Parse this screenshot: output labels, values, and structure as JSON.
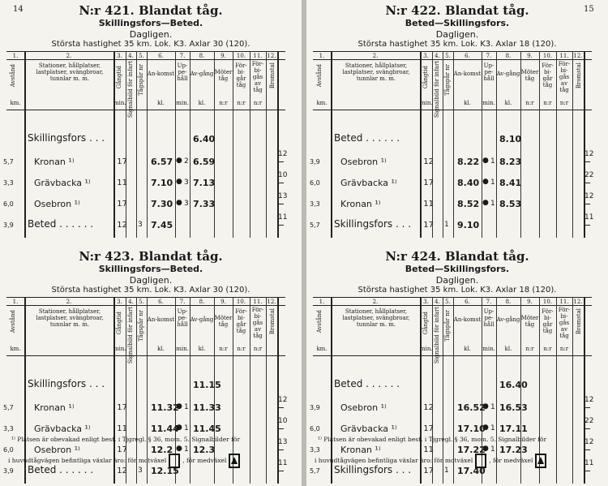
{
  "left": {
    "page_number": "14",
    "tables": [
      {
        "nr": "N:r 421.",
        "title": "Blandat tåg.",
        "route": "Skillingsfors—Beted.",
        "daily": "Dagligen.",
        "speed": "Största hastighet 35 km.  Lok. K3.  Axlar 30 (120).",
        "rows": [
          {
            "km": "",
            "station": "Skillingsfors . . .",
            "grade": "",
            "sig": "",
            "arr": "",
            "hold": "",
            "dep": "6.40",
            "brake": ""
          },
          {
            "km": "5,7",
            "station": "Kronan ¹⁾",
            "grade": "17",
            "sig": "",
            "arr": "6.57",
            "hold": "2",
            "dep": "6.59",
            "brake": "12"
          },
          {
            "km": "3,3",
            "station": "Grävbacka ¹⁾",
            "grade": "11",
            "sig": "",
            "arr": "7.10",
            "hold": "3",
            "dep": "7.13",
            "brake": "10"
          },
          {
            "km": "6,0",
            "station": "Osebron ¹⁾",
            "grade": "17",
            "sig": "",
            "arr": "7.30",
            "hold": "3",
            "dep": "7.33",
            "brake": "13"
          },
          {
            "km": "3,9",
            "station": "Beted . . . . . .",
            "grade": "12",
            "sig": "3",
            "arr": "7.45",
            "hold": "",
            "dep": "",
            "brake": "11"
          }
        ]
      },
      {
        "nr": "N:r 423.",
        "title": "Blandat tåg.",
        "route": "Skillingsfors—Beted.",
        "daily": "Dagligen.",
        "speed": "Största hastighet 35 km.  Lok. K3.  Axlar 30 (120).",
        "rows": [
          {
            "km": "",
            "station": "Skillingsfors . . .",
            "grade": "",
            "sig": "",
            "arr": "",
            "hold": "",
            "dep": "11.15",
            "brake": ""
          },
          {
            "km": "5,7",
            "station": "Kronan ¹⁾",
            "grade": "17",
            "sig": "",
            "arr": "11.32",
            "hold": "1",
            "dep": "11.33",
            "brake": "12"
          },
          {
            "km": "3,3",
            "station": "Grävbacka ¹⁾",
            "grade": "11",
            "sig": "",
            "arr": "11.44",
            "hold": "1",
            "dep": "11.45",
            "brake": "10"
          },
          {
            "km": "6,0",
            "station": "Osebron ¹⁾",
            "grade": "17",
            "sig": "",
            "arr": "12.2",
            "hold": "1",
            "dep": "12.3",
            "brake": "13"
          },
          {
            "km": "3,9",
            "station": "Beted . . . . . .",
            "grade": "12",
            "sig": "3",
            "arr": "12.15",
            "hold": "",
            "dep": "",
            "brake": "11"
          }
        ]
      }
    ],
    "footnote_line1": "¹⁾ Platsen är obevakad enligt best. i Tjgregl. § 36, mom. 5.  Signalbilder för",
    "footnote_line2a": "i huvudtågvägen befintliga växlar äro: för motväxel",
    "footnote_line2b": ", för medväxel"
  },
  "right": {
    "page_number": "15",
    "tables": [
      {
        "nr": "N:r 422.",
        "title": "Blandat tåg.",
        "route": "Beted—Skillingsfors.",
        "daily": "Dagligen.",
        "speed": "Största hastighet 35 km.  Lok. K3.  Axlar 18 (120).",
        "rows": [
          {
            "km": "",
            "station": "Beted . . . . . .",
            "grade": "",
            "sig": "",
            "arr": "",
            "hold": "",
            "dep": "8.10",
            "brake": ""
          },
          {
            "km": "3,9",
            "station": "Osebron ¹⁾",
            "grade": "12",
            "sig": "",
            "arr": "8.22",
            "hold": "1",
            "dep": "8.23",
            "brake": "12"
          },
          {
            "km": "6,0",
            "station": "Grävbacka ¹⁾",
            "grade": "17",
            "sig": "",
            "arr": "8.40",
            "hold": "1",
            "dep": "8.41",
            "brake": "22"
          },
          {
            "km": "3,3",
            "station": "Kronan ¹⁾",
            "grade": "11",
            "sig": "",
            "arr": "8.52",
            "hold": "1",
            "dep": "8.53",
            "brake": "12"
          },
          {
            "km": "5,7",
            "station": "Skillingsfors . . .",
            "grade": "17",
            "sig": "1",
            "arr": "9.10",
            "hold": "",
            "dep": "",
            "brake": "11"
          }
        ]
      },
      {
        "nr": "N:r 424.",
        "title": "Blandat tåg.",
        "route": "Beted—Skillingsfors.",
        "daily": "Dagligen.",
        "speed": "Största hastighet 35 km.  Lok. K3.  Axlar 18 (120).",
        "rows": [
          {
            "km": "",
            "station": "Beted . . . . . .",
            "grade": "",
            "sig": "",
            "arr": "",
            "hold": "",
            "dep": "16.40",
            "brake": ""
          },
          {
            "km": "3,9",
            "station": "Osebron ¹⁾",
            "grade": "12",
            "sig": "",
            "arr": "16.52",
            "hold": "1",
            "dep": "16.53",
            "brake": "12"
          },
          {
            "km": "6,0",
            "station": "Grävbacka ¹⁾",
            "grade": "17",
            "sig": "",
            "arr": "17.10",
            "hold": "1",
            "dep": "17.11",
            "brake": "22"
          },
          {
            "km": "3,3",
            "station": "Kronan ¹⁾",
            "grade": "11",
            "sig": "",
            "arr": "17.22",
            "hold": "1",
            "dep": "17.23",
            "brake": "12"
          },
          {
            "km": "5,7",
            "station": "Skillingsfors . . .",
            "grade": "17",
            "sig": "1",
            "arr": "17.40",
            "hold": "",
            "dep": "",
            "brake": "11"
          }
        ]
      }
    ],
    "footnote_line1": "¹⁾ Platsen är obevakad enligt best. i Tjgregl. § 36, mom. 5.  Signalbilder för",
    "footnote_line2a": "i huvudtågvägen befintliga växlar äro: för motväxel",
    "footnote_line2b": ", för medväxel"
  },
  "header": {
    "col_numbers": [
      "1.",
      "2.",
      "3.",
      "4.",
      "5.",
      "6.",
      "7.",
      "8.",
      "9.",
      "10.",
      "11.",
      "12."
    ],
    "avstand": "Avstånd",
    "km": "km.",
    "stations": "Stationer, hållplatser, lastplatser, svängbroar, tunnlar m. m.",
    "gangtid": "Gångtid",
    "gangtid_unit": "min.",
    "signalbild": "Signalbild för infart",
    "tagspar": "Tågspår nr",
    "ankomst": "An-komst",
    "ankomst_unit": "kl.",
    "uppehall": "Up-pe-håll",
    "uppehall_unit": "min.",
    "avgang": "Av-gång",
    "avgang_unit": "kl.",
    "moter": "Möter tåg",
    "moter_unit": "n:r",
    "forbigar": "För-bi-går tåg",
    "forbigar_unit": "n:r",
    "forbigas": "För-bi-gås av tåg",
    "forbigas_unit": "n:r",
    "bromstal": "Bromstal"
  }
}
